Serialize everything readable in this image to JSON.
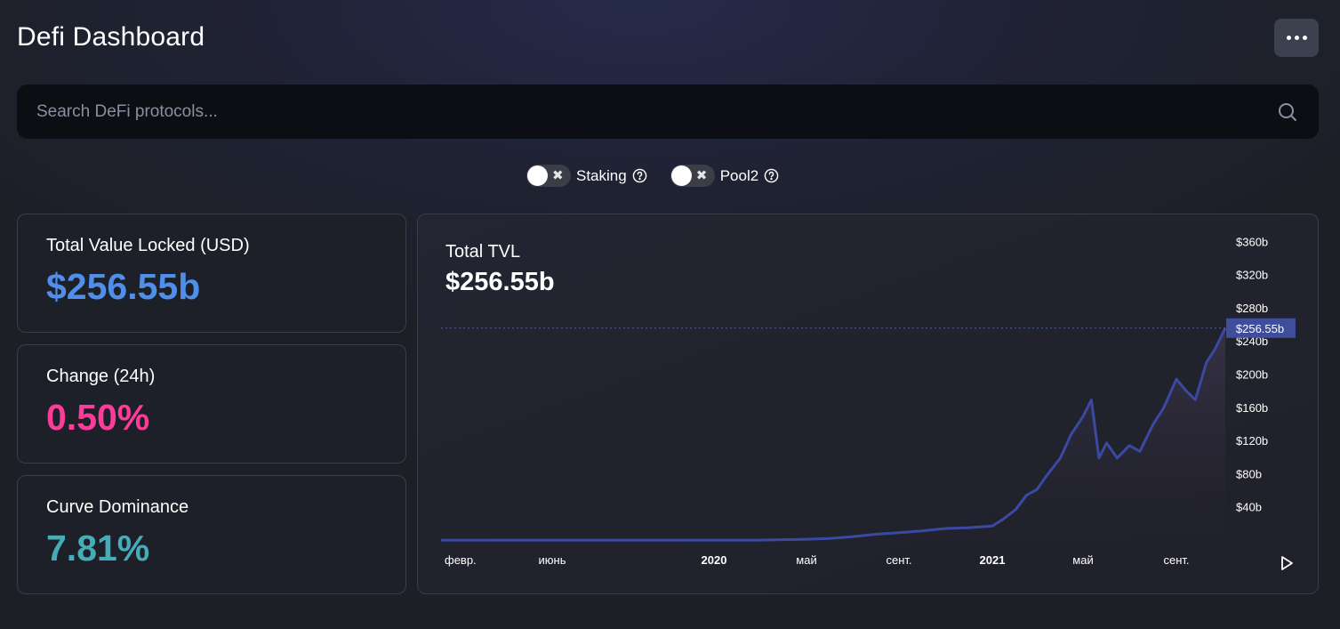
{
  "header": {
    "title": "Defi Dashboard",
    "menu_icon": "more-horizontal-icon"
  },
  "search": {
    "placeholder": "Search DeFi protocols...",
    "value": "",
    "icon": "search-icon"
  },
  "toggles": [
    {
      "label": "Staking",
      "checked": false
    },
    {
      "label": "Pool2",
      "checked": false
    }
  ],
  "stats": {
    "tvl": {
      "label": "Total Value Locked (USD)",
      "value": "$256.55b",
      "color": "#4f8fea"
    },
    "change": {
      "label": "Change (24h)",
      "value": "0.50%",
      "color": "#fd3c99"
    },
    "dominance": {
      "label": "Curve Dominance",
      "value": "7.81%",
      "color": "#46acb7"
    }
  },
  "chart": {
    "title": "Total TVL",
    "value": "$256.55b",
    "current_label": "$256.55b",
    "line_color": "#3a4aa3",
    "controls": {
      "play_icon": "play-icon"
    }
  },
  "chart_data": {
    "type": "area",
    "title": "Total TVL",
    "ylim": [
      0,
      370
    ],
    "y_ticks": [
      40,
      80,
      120,
      160,
      200,
      240,
      280,
      320,
      360
    ],
    "y_tick_labels": [
      "$40b",
      "$80b",
      "$120b",
      "$160b",
      "$200b",
      "$240b",
      "$280b",
      "$320b",
      "$360b"
    ],
    "x_tick_labels": [
      "февр.",
      "июнь",
      "2020",
      "май",
      "сент.",
      "2021",
      "май",
      "сент."
    ],
    "x_tick_bold": [
      false,
      false,
      true,
      false,
      false,
      true,
      false,
      false
    ],
    "x_tick_dates": [
      "2019-02-01",
      "2019-06-01",
      "2020-01-01",
      "2020-05-01",
      "2020-09-01",
      "2021-01-01",
      "2021-05-01",
      "2021-09-01"
    ],
    "current_value": 256.55,
    "series": [
      {
        "x": [
          "2019-01-01",
          "2019-02-01",
          "2019-04-01",
          "2019-06-01",
          "2019-08-01",
          "2019-10-01",
          "2020-01-01",
          "2020-03-01",
          "2020-05-01",
          "2020-06-01",
          "2020-07-01",
          "2020-08-01",
          "2020-09-01",
          "2020-10-01",
          "2020-11-01",
          "2020-12-01",
          "2021-01-01",
          "2021-01-15",
          "2021-02-01",
          "2021-02-15",
          "2021-03-01",
          "2021-03-15",
          "2021-04-01",
          "2021-04-15",
          "2021-05-01",
          "2021-05-12",
          "2021-05-22",
          "2021-06-01",
          "2021-06-15",
          "2021-07-01",
          "2021-07-15",
          "2021-08-01",
          "2021-08-15",
          "2021-09-01",
          "2021-09-10",
          "2021-09-20",
          "2021-10-01",
          "2021-10-10",
          "2021-10-20"
        ],
        "values": [
          1,
          1,
          1,
          1,
          1,
          1,
          1,
          1,
          2,
          3,
          5,
          8,
          10,
          12,
          15,
          16,
          18,
          26,
          38,
          55,
          62,
          80,
          100,
          128,
          150,
          170,
          100,
          118,
          100,
          115,
          108,
          140,
          160,
          195,
          182,
          170,
          215,
          232,
          256.55
        ]
      }
    ]
  }
}
